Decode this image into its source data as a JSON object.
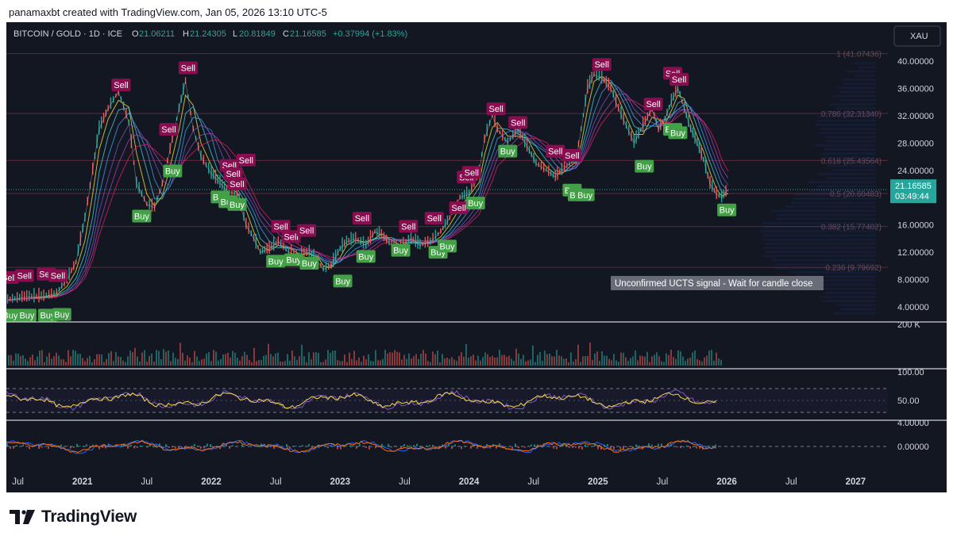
{
  "caption": "panamaxbt created with TradingView.com, Jan 05, 2026 13:10 UTC-5",
  "brand": "TradingView",
  "chart_data": {
    "type": "line",
    "title": "BITCOIN / GOLD · 1D · ICE",
    "ohlc": {
      "o_label": "O",
      "o": "21.06211",
      "h_label": "H",
      "h": "21.24305",
      "l_label": "L",
      "l": "20.81849",
      "c_label": "C",
      "c": "21.16585",
      "change": "+0.37994 (+1.83%)"
    },
    "symbol_badge": "XAU",
    "price_scale": {
      "ticks": [
        "40.00000",
        "36.00000",
        "32.00000",
        "28.00000",
        "24.00000",
        "16.00000",
        "12.00000",
        "8.00000",
        "4.00000"
      ],
      "tick_values": [
        40,
        36,
        32,
        28,
        24,
        16,
        12,
        8,
        4
      ],
      "ylim": [
        2.5,
        41.5
      ]
    },
    "last_price": {
      "value": 21.16585,
      "label": "21.16585",
      "countdown": "03:49:44"
    },
    "fib_levels": [
      {
        "label": "1 (41.07436)",
        "value": 41.07436
      },
      {
        "label": "0.786 (32.31340)",
        "value": 32.3134
      },
      {
        "label": "0.618 (25.43564)",
        "value": 25.43564
      },
      {
        "label": "0.5 (20.60483)",
        "value": 20.60483
      },
      {
        "label": "0.382 (15.77402)",
        "value": 15.77402
      },
      {
        "label": "0.236 (9.79692)",
        "value": 9.79692
      }
    ],
    "x_axis": {
      "ticks": [
        "Jul",
        "2021",
        "Jul",
        "2022",
        "Jul",
        "2023",
        "Jul",
        "2024",
        "Jul",
        "2025",
        "Jul",
        "2026",
        "Jul",
        "2027"
      ],
      "tick_times": [
        2020.5,
        2021.0,
        2021.5,
        2022.0,
        2022.5,
        2023.0,
        2023.5,
        2024.0,
        2024.5,
        2025.0,
        2025.5,
        2026.0,
        2026.5,
        2027.0
      ],
      "xlim": [
        2020.41,
        2027.25
      ]
    },
    "series": [
      {
        "name": "BITCOIN / GOLD",
        "x": [
          2020.42,
          2020.55,
          2020.7,
          2020.8,
          2020.88,
          2020.95,
          2021.02,
          2021.08,
          2021.13,
          2021.2,
          2021.28,
          2021.36,
          2021.42,
          2021.5,
          2021.56,
          2021.62,
          2021.68,
          2021.75,
          2021.8,
          2021.86,
          2021.92,
          2022.0,
          2022.05,
          2022.12,
          2022.2,
          2022.27,
          2022.33,
          2022.38,
          2022.45,
          2022.52,
          2022.6,
          2022.68,
          2022.76,
          2022.83,
          2022.87,
          2022.93,
          2023.0,
          2023.05,
          2023.12,
          2023.2,
          2023.27,
          2023.32,
          2023.4,
          2023.47,
          2023.55,
          2023.62,
          2023.7,
          2023.78,
          2023.85,
          2023.93,
          2024.0,
          2024.08,
          2024.12,
          2024.18,
          2024.22,
          2024.3,
          2024.38,
          2024.45,
          2024.52,
          2024.6,
          2024.67,
          2024.72,
          2024.78,
          2024.83,
          2024.87,
          2024.92,
          2024.97,
          2025.03,
          2025.1,
          2025.16,
          2025.22,
          2025.28,
          2025.35,
          2025.42,
          2025.47,
          2025.52,
          2025.57,
          2025.62,
          2025.67,
          2025.72,
          2025.77,
          2025.82,
          2025.87,
          2025.92,
          2025.96,
          2026.01
        ],
        "y": [
          5.0,
          5.4,
          5.5,
          6.0,
          8.0,
          10.5,
          17.0,
          24.0,
          30.0,
          33.0,
          35.5,
          31.0,
          22.0,
          19.0,
          18.5,
          22.0,
          27.0,
          33.0,
          37.0,
          30.0,
          26.0,
          23.5,
          22.5,
          21.0,
          20.5,
          16.0,
          14.0,
          12.0,
          12.5,
          13.5,
          12.0,
          11.5,
          12.0,
          10.5,
          9.5,
          10.0,
          12.5,
          13.5,
          14.0,
          13.0,
          15.0,
          14.5,
          13.0,
          13.0,
          14.0,
          13.0,
          13.5,
          15.0,
          17.0,
          20.0,
          20.5,
          24.0,
          28.5,
          32.0,
          30.0,
          28.0,
          30.0,
          27.5,
          25.0,
          24.0,
          23.0,
          24.0,
          25.0,
          25.5,
          30.0,
          36.0,
          38.0,
          37.5,
          36.0,
          33.0,
          30.5,
          28.0,
          30.5,
          33.0,
          30.0,
          31.5,
          34.0,
          36.0,
          33.0,
          30.0,
          28.0,
          25.5,
          22.0,
          20.5,
          20.0,
          21.17
        ]
      }
    ],
    "signals": [
      {
        "label": "Sell",
        "t": 2020.43,
        "v": 8.3
      },
      {
        "label": "Sell",
        "t": 2020.55,
        "v": 8.6
      },
      {
        "label": "Sell",
        "t": 2020.72,
        "v": 8.8
      },
      {
        "label": "Sell",
        "t": 2020.81,
        "v": 8.6
      },
      {
        "label": "Sell",
        "t": 2021.3,
        "v": 36.5
      },
      {
        "label": "Sell",
        "t": 2021.67,
        "v": 30.0
      },
      {
        "label": "Sell",
        "t": 2021.82,
        "v": 39.0
      },
      {
        "label": "Sell",
        "t": 2022.14,
        "v": 24.7
      },
      {
        "label": "Sell",
        "t": 2022.17,
        "v": 23.5
      },
      {
        "label": "Sell",
        "t": 2022.2,
        "v": 22.0
      },
      {
        "label": "Sell",
        "t": 2022.27,
        "v": 25.5
      },
      {
        "label": "Sell",
        "t": 2022.54,
        "v": 15.8
      },
      {
        "label": "Sell",
        "t": 2022.62,
        "v": 14.3
      },
      {
        "label": "Sell",
        "t": 2022.74,
        "v": 15.2
      },
      {
        "label": "Sell",
        "t": 2023.17,
        "v": 17.0
      },
      {
        "label": "Sell",
        "t": 2023.53,
        "v": 15.8
      },
      {
        "label": "Sell",
        "t": 2023.73,
        "v": 17.0
      },
      {
        "label": "Sell",
        "t": 2023.92,
        "v": 18.5
      },
      {
        "label": "Sell",
        "t": 2023.98,
        "v": 23.0
      },
      {
        "label": "Sell",
        "t": 2024.02,
        "v": 23.7
      },
      {
        "label": "Sell",
        "t": 2024.21,
        "v": 33.0
      },
      {
        "label": "Sell",
        "t": 2024.38,
        "v": 31.0
      },
      {
        "label": "Sell",
        "t": 2024.67,
        "v": 26.8
      },
      {
        "label": "Sell",
        "t": 2024.8,
        "v": 26.2
      },
      {
        "label": "Sell",
        "t": 2025.03,
        "v": 39.5
      },
      {
        "label": "Sell",
        "t": 2025.43,
        "v": 33.7
      },
      {
        "label": "Sell",
        "t": 2025.58,
        "v": 38.2
      },
      {
        "label": "Sell",
        "t": 2025.63,
        "v": 37.3
      },
      {
        "label": "Buy",
        "t": 2020.44,
        "v": 2.8
      },
      {
        "label": "Buy",
        "t": 2020.57,
        "v": 2.8
      },
      {
        "label": "Buy",
        "t": 2020.73,
        "v": 2.8
      },
      {
        "label": "Buy",
        "t": 2020.84,
        "v": 2.9
      },
      {
        "label": "Buy",
        "t": 2021.46,
        "v": 17.3
      },
      {
        "label": "Buy",
        "t": 2021.7,
        "v": 23.9
      },
      {
        "label": "Buy",
        "t": 2022.07,
        "v": 20.1
      },
      {
        "label": "Buy",
        "t": 2022.13,
        "v": 19.4
      },
      {
        "label": "Buy",
        "t": 2022.2,
        "v": 19.0
      },
      {
        "label": "Buy",
        "t": 2022.5,
        "v": 10.7
      },
      {
        "label": "Buy",
        "t": 2022.64,
        "v": 10.9
      },
      {
        "label": "Buy",
        "t": 2022.76,
        "v": 10.4
      },
      {
        "label": "Buy",
        "t": 2023.02,
        "v": 7.8
      },
      {
        "label": "Buy",
        "t": 2023.2,
        "v": 11.4
      },
      {
        "label": "Buy",
        "t": 2023.47,
        "v": 12.3
      },
      {
        "label": "Buy",
        "t": 2023.76,
        "v": 12.0
      },
      {
        "label": "Buy",
        "t": 2023.83,
        "v": 12.9
      },
      {
        "label": "Buy",
        "t": 2024.05,
        "v": 19.2
      },
      {
        "label": "Buy",
        "t": 2024.3,
        "v": 26.8
      },
      {
        "label": "Buy",
        "t": 2024.8,
        "v": 21.1
      },
      {
        "label": "Buy",
        "t": 2024.84,
        "v": 20.4
      },
      {
        "label": "Buy",
        "t": 2024.9,
        "v": 20.4
      },
      {
        "label": "Buy",
        "t": 2025.36,
        "v": 24.6
      },
      {
        "label": "Buy",
        "t": 2025.58,
        "v": 30.0
      },
      {
        "label": "Buy",
        "t": 2025.62,
        "v": 29.5
      },
      {
        "label": "Buy",
        "t": 2026.0,
        "v": 18.2
      }
    ],
    "annotation": "Unconfirmed UCTS signal - Wait for candle close",
    "volume_pane": {
      "tick": "200 K"
    },
    "rsi_pane": {
      "ticks": [
        "100.00",
        "50.00"
      ],
      "tick_values": [
        100,
        50
      ]
    },
    "macd_pane": {
      "ticks": [
        "4.00000",
        "0.00000"
      ],
      "tick_values": [
        4,
        0
      ]
    },
    "colors": {
      "background": "#131722",
      "up": "#26a69a",
      "down": "#ef5350",
      "sell_label": "#880e4f",
      "buy_label": "#43a047",
      "fib_line": "#5c2a3a",
      "price_line": "#26a69a",
      "rsi": "#7e57c2",
      "rsi_ma": "#f5d742",
      "macd": "#2962ff",
      "signal": "#ff6d00"
    },
    "grid": false,
    "legend": "top-left"
  }
}
